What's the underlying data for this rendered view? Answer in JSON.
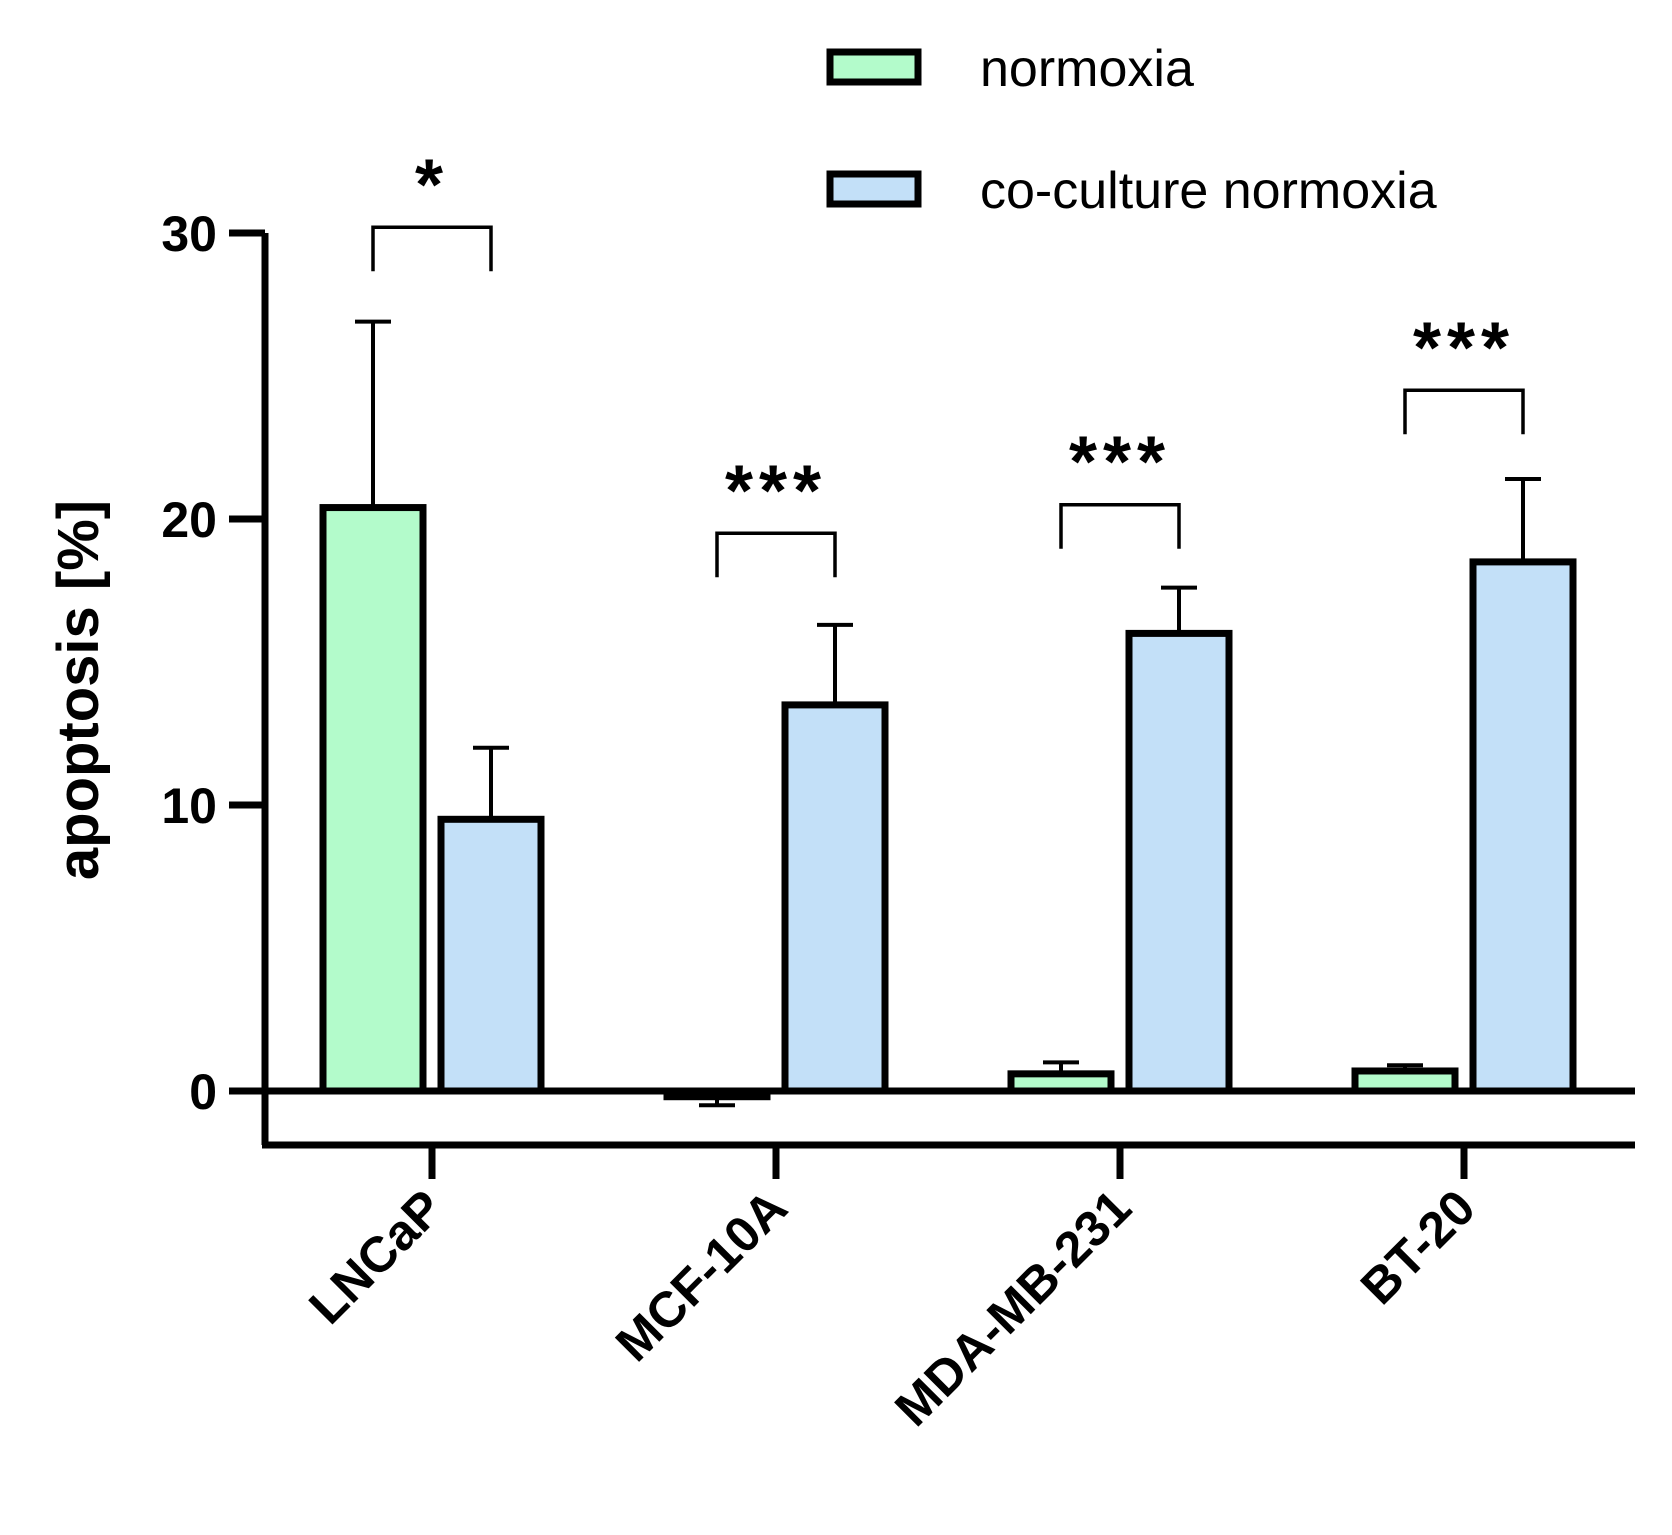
{
  "chart_data": {
    "type": "bar",
    "title": "",
    "xlabel": "",
    "ylabel": "apoptosis [%]",
    "ylim": [
      -2,
      30
    ],
    "yticks": [
      0,
      10,
      20,
      30
    ],
    "ytick_labels": [
      "0",
      "10",
      "20",
      "30"
    ],
    "categories": [
      "LNCaP",
      "MCF-10A",
      "MDA-MB-231",
      "BT-20"
    ],
    "series": [
      {
        "name": "normoxia",
        "color": "#b3fbcb",
        "values": [
          20.4,
          -0.2,
          0.6,
          0.7
        ],
        "errors": [
          6.5,
          0.3,
          0.4,
          0.2
        ]
      },
      {
        "name": "co-culture normoxia",
        "color": "#c3e0f8",
        "values": [
          9.5,
          13.5,
          16.0,
          18.5
        ],
        "errors": [
          2.5,
          2.8,
          1.6,
          2.9
        ]
      }
    ],
    "significance": [
      {
        "category": "LNCaP",
        "label": "*",
        "level": 30.2
      },
      {
        "category": "MCF-10A",
        "label": "***",
        "level": 19.5
      },
      {
        "category": "MDA-MB-231",
        "label": "***",
        "level": 20.5
      },
      {
        "category": "BT-20",
        "label": "***",
        "level": 24.5
      }
    ],
    "legend_position": "top-right",
    "grid": false
  }
}
